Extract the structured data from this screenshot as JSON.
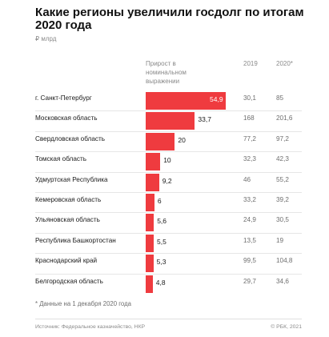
{
  "title": "Какие регионы увеличили госдолг по итогам 2020 года",
  "unit": "₽ млрд",
  "columns": {
    "growth": "Прирост в номинальном выражении",
    "y2019": "2019",
    "y2020": "2020*"
  },
  "chart_data": {
    "type": "bar",
    "orientation": "horizontal",
    "categories": [
      "г. Санкт-Петербург",
      "Московская область",
      "Свердловская область",
      "Томская область",
      "Удмуртская Республика",
      "Кемеровская область",
      "Ульяновская область",
      "Республика Башкортостан",
      "Краснодарский край",
      "Белгородская область"
    ],
    "growth": [
      54.9,
      33.7,
      20,
      10,
      9.2,
      6,
      5.6,
      5.5,
      5.3,
      4.8
    ],
    "growth_labels": [
      "54,9",
      "33,7",
      "20",
      "10",
      "9,2",
      "6",
      "5,6",
      "5,5",
      "5,3",
      "4,8"
    ],
    "debt_2019": [
      "30,1",
      "168",
      "77,2",
      "32,3",
      "46",
      "33,2",
      "24,9",
      "13,5",
      "99,5",
      "29,7"
    ],
    "debt_2020": [
      "85",
      "201,6",
      "97,2",
      "42,3",
      "55,2",
      "39,2",
      "30,5",
      "19",
      "104,8",
      "34,6"
    ],
    "bar_color": "#ef3b3f",
    "xlim": [
      0,
      54.9
    ]
  },
  "note": "* Данные на 1 декабря 2020 года",
  "source": "Источник: Федеральное казначейство, НКР",
  "copyright": "© РБК, 2021"
}
